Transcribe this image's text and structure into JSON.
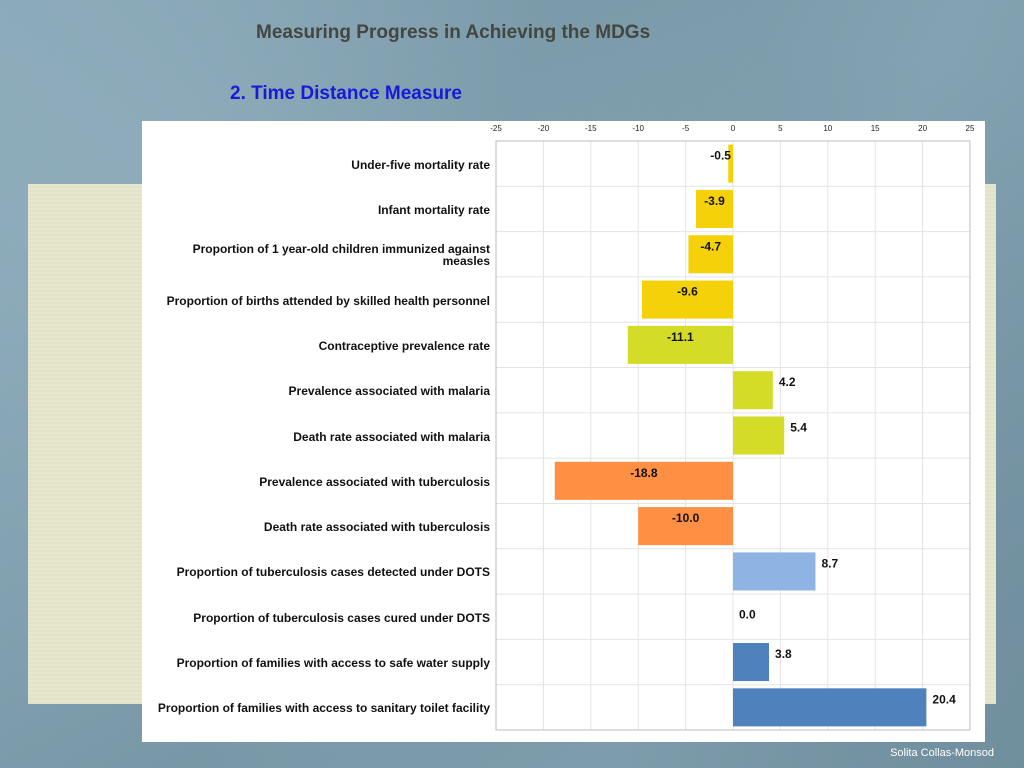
{
  "slide": {
    "title": "Measuring Progress in Achieving the MDGs",
    "subtitle": "2. Time Distance Measure",
    "footer": "Solita Collas-Monsod"
  },
  "chart_data": {
    "type": "bar",
    "orientation": "horizontal",
    "title": "",
    "xlabel": "",
    "ylabel": "",
    "xlim": [
      -25,
      25
    ],
    "x_ticks": [
      -25,
      -20,
      -15,
      -10,
      -5,
      0,
      5,
      10,
      15,
      20,
      25
    ],
    "grid": true,
    "categories": [
      "Under-five mortality rate",
      "Infant mortality rate",
      "Proportion of 1 year-old children immunized against measles",
      "Proportion of births attended by skilled health personnel",
      "Contraceptive prevalence rate",
      "Prevalence associated with malaria",
      "Death rate associated with malaria",
      "Prevalence associated with tuberculosis",
      "Death rate associated with tuberculosis",
      "Proportion of tuberculosis cases detected under DOTS",
      "Proportion of tuberculosis cases cured under DOTS",
      "Proportion of families with access to safe water supply",
      "Proportion of families with access to sanitary toilet facility"
    ],
    "values": [
      -0.5,
      -3.9,
      -4.7,
      -9.6,
      -11.1,
      4.2,
      5.4,
      -18.8,
      -10.0,
      8.7,
      0.0,
      3.8,
      20.4
    ],
    "value_labels": [
      "-0.5",
      "-3.9",
      "-4.7",
      "-9.6",
      "-11.1",
      "4.2",
      "5.4",
      "-18.8",
      "-10.0",
      "8.7",
      "0.0",
      "3.8",
      "20.4"
    ],
    "colors": [
      "#f5d10a",
      "#f5d10a",
      "#f5d10a",
      "#f5d10a",
      "#d4dc28",
      "#d4dc28",
      "#d4dc28",
      "#ff8f43",
      "#ff8f43",
      "#8db4e2",
      "#8db4e2",
      "#4f81bd",
      "#4f81bd"
    ]
  }
}
